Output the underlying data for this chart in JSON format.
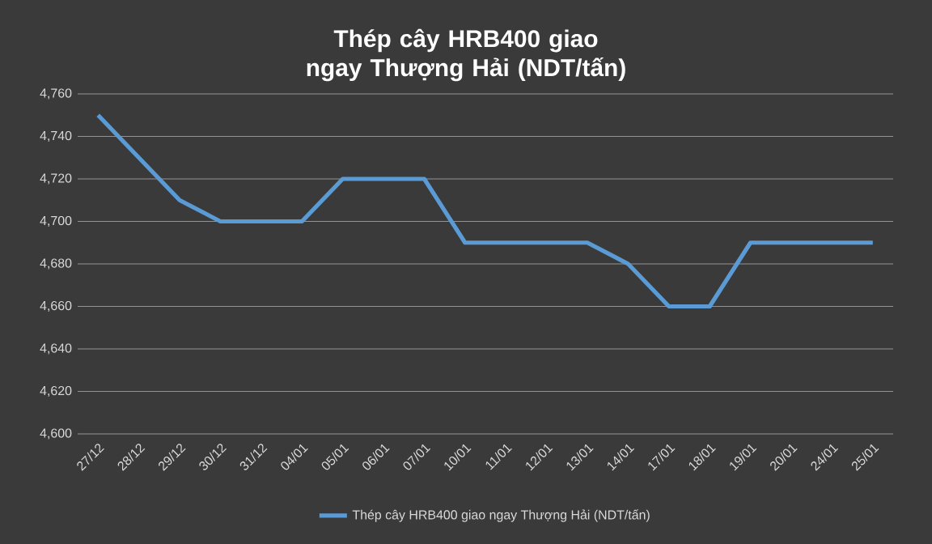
{
  "chart_data": {
    "type": "line",
    "title": "Thép cây HRB400 giao ngay Thượng Hải (NDT/tấn)",
    "categories": [
      "27/12",
      "28/12",
      "29/12",
      "30/12",
      "31/12",
      "04/01",
      "05/01",
      "06/01",
      "07/01",
      "10/01",
      "11/01",
      "12/01",
      "13/01",
      "14/01",
      "17/01",
      "18/01",
      "19/01",
      "20/01",
      "24/01",
      "25/01"
    ],
    "series": [
      {
        "name": "Thép cây HRB400 giao ngay Thượng Hải (NDT/tấn)",
        "color": "#5b9bd5",
        "values": [
          4750,
          4730,
          4710,
          4700,
          4700,
          4700,
          4720,
          4720,
          4720,
          4690,
          4690,
          4690,
          4690,
          4680,
          4660,
          4660,
          4690,
          4690,
          4690,
          4690
        ]
      }
    ],
    "ylim": [
      4600,
      4760
    ],
    "yticks": [
      {
        "value": 4600,
        "label": "4,600"
      },
      {
        "value": 4620,
        "label": "4,620"
      },
      {
        "value": 4640,
        "label": "4,640"
      },
      {
        "value": 4660,
        "label": "4,660"
      },
      {
        "value": 4680,
        "label": "4,680"
      },
      {
        "value": 4700,
        "label": "4,700"
      },
      {
        "value": 4720,
        "label": "4,720"
      },
      {
        "value": 4740,
        "label": "4,740"
      },
      {
        "value": 4760,
        "label": "4,760"
      }
    ],
    "grid": "y",
    "legend": "bottom",
    "marker": "none",
    "line_style": "solid"
  }
}
